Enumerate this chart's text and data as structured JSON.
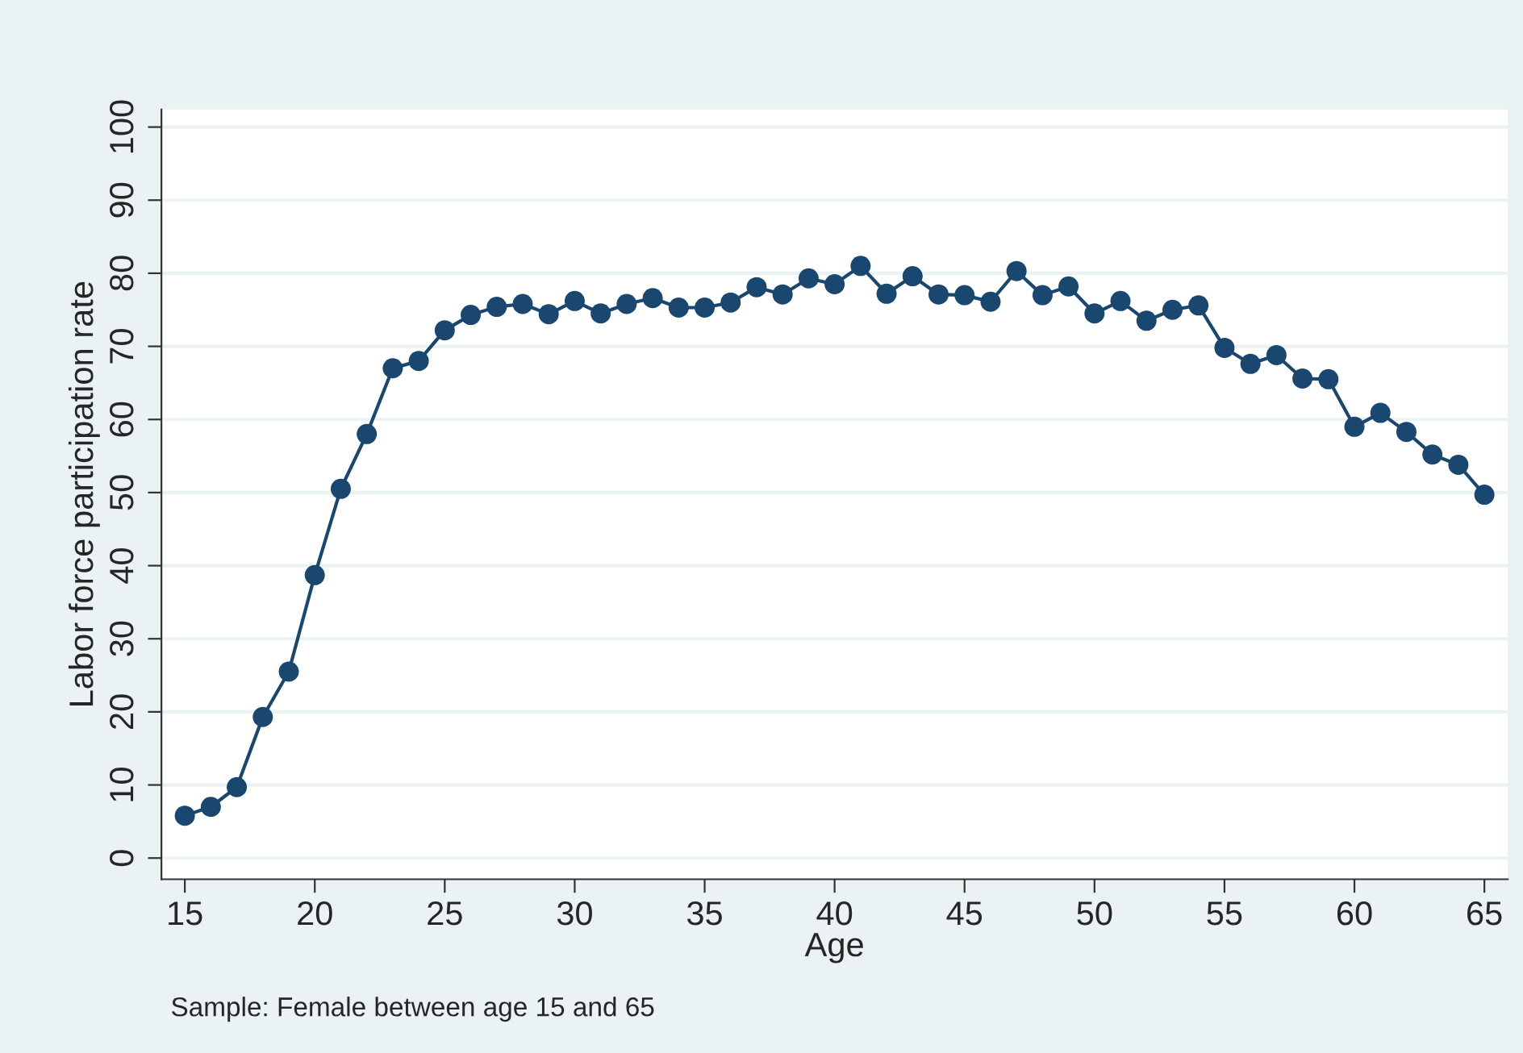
{
  "chart_data": {
    "type": "line",
    "xlabel": "Age",
    "ylabel": "Labor force participation rate",
    "annotations": [
      "Sample: Female between age 15 and 65"
    ],
    "x": [
      15,
      16,
      17,
      18,
      19,
      20,
      21,
      22,
      23,
      24,
      25,
      26,
      27,
      28,
      29,
      30,
      31,
      32,
      33,
      34,
      35,
      36,
      37,
      38,
      39,
      40,
      41,
      42,
      43,
      44,
      45,
      46,
      47,
      48,
      49,
      50,
      51,
      52,
      53,
      54,
      55,
      56,
      57,
      58,
      59,
      60,
      61,
      62,
      63,
      64,
      65
    ],
    "series": [
      {
        "color": "#1a476f",
        "values": [
          5.8,
          7,
          9.7,
          19.3,
          25.5,
          38.7,
          50.5,
          58,
          67,
          68,
          72.2,
          74.3,
          75.4,
          75.8,
          74.4,
          76.2,
          74.5,
          75.8,
          76.6,
          75.3,
          75.3,
          76,
          78.1,
          77.1,
          79.3,
          78.5,
          81,
          77.2,
          79.6,
          77.1,
          77,
          76.1,
          80.3,
          77,
          78.2,
          74.5,
          76.2,
          73.5,
          75,
          75.6,
          69.8,
          67.6,
          68.8,
          65.6,
          65.5,
          59,
          60.9,
          58.3,
          55.2,
          53.8,
          49.7
        ]
      }
    ],
    "xlim": [
      14.1,
      65.9
    ],
    "xticks": [
      15,
      20,
      25,
      30,
      35,
      40,
      45,
      50,
      55,
      60,
      65
    ],
    "ylim": [
      -2.9,
      102.4
    ],
    "yticks": [
      0,
      10,
      20,
      30,
      40,
      50,
      60,
      70,
      80,
      90,
      100
    ],
    "grid": "y",
    "marker": "circle",
    "line_style": "solid",
    "legend": false
  }
}
